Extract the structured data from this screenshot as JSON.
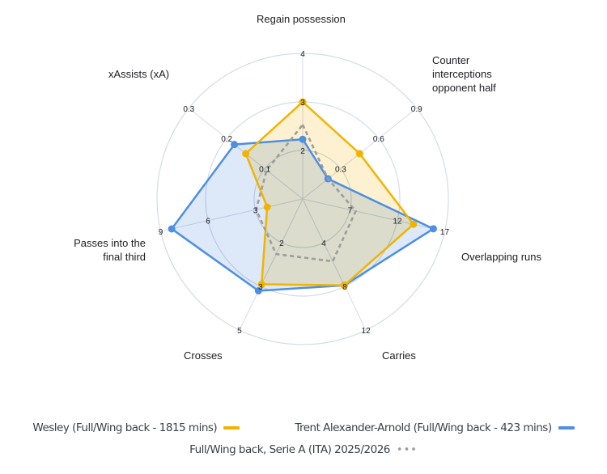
{
  "chart_data": {
    "type": "radar",
    "title": "",
    "center": [
      374,
      246
    ],
    "radius": 180,
    "rings": 3,
    "axes": [
      {
        "name": "Regain possession",
        "min": 1,
        "max": 4,
        "ticks": [
          "2",
          "3",
          "4"
        ]
      },
      {
        "name": "Counter interceptions opponent half",
        "min": 0,
        "max": 0.9,
        "ticks": [
          "0.3",
          "0.6",
          "0.9"
        ]
      },
      {
        "name": "Overlapping runs",
        "min": 2,
        "max": 17,
        "ticks": [
          "7",
          "12",
          "17"
        ]
      },
      {
        "name": "Carries",
        "min": 0,
        "max": 12,
        "ticks": [
          "4",
          "8",
          "12"
        ]
      },
      {
        "name": "Crosses",
        "min": 0,
        "max": 5,
        "ticks": [
          "2",
          "3",
          "5"
        ]
      },
      {
        "name": "Passes into the final third",
        "min": 0,
        "max": 9,
        "ticks": [
          "3",
          "6",
          "9"
        ]
      },
      {
        "name": "xAssists (xA)",
        "min": 0,
        "max": 0.3,
        "ticks": [
          "0.1",
          "0.2",
          "0.3"
        ]
      }
    ],
    "series": [
      {
        "name": "Wesley (Full/Wing back - 1815 mins)",
        "color": "#f0b400",
        "fill": "#f9d77a",
        "style": "solid",
        "values": [
          3.0,
          0.45,
          13.7,
          7.9,
          3.25,
          2.25,
          0.15
        ]
      },
      {
        "name": "Trent Alexander-Arnold (Full/Wing back - 423 mins)",
        "color": "#4e8fe0",
        "fill": "#9fc0ef",
        "style": "solid",
        "values": [
          2.23,
          0.2,
          15.8,
          7.9,
          3.5,
          8.3,
          0.18
        ]
      },
      {
        "name": "Full/Wing back, Serie A (ITA) 2025/2026",
        "color": "#9e9e9e",
        "fill": "none",
        "style": "dashed",
        "values": [
          2.53,
          0.2,
          7.6,
          5.7,
          2.1,
          2.95,
          0.095
        ]
      }
    ],
    "legend_position": "bottom"
  },
  "axis_labels": [
    "Regain possession",
    "Counter\ninterceptions\nopponent half",
    "Overlapping runs",
    "Carries",
    "Crosses",
    "Passes into the\nfinal third",
    "xAssists (xA)"
  ],
  "legend": {
    "wesley": "Wesley (Full/Wing back - 1815 mins)",
    "trent": "Trent Alexander-Arnold (Full/Wing back - 423 mins)",
    "average": "Full/Wing back, Serie A (ITA) 2025/2026",
    "colors": {
      "wesley": "#f0b400",
      "trent": "#4e8fe0",
      "average": "#9e9e9e"
    }
  }
}
